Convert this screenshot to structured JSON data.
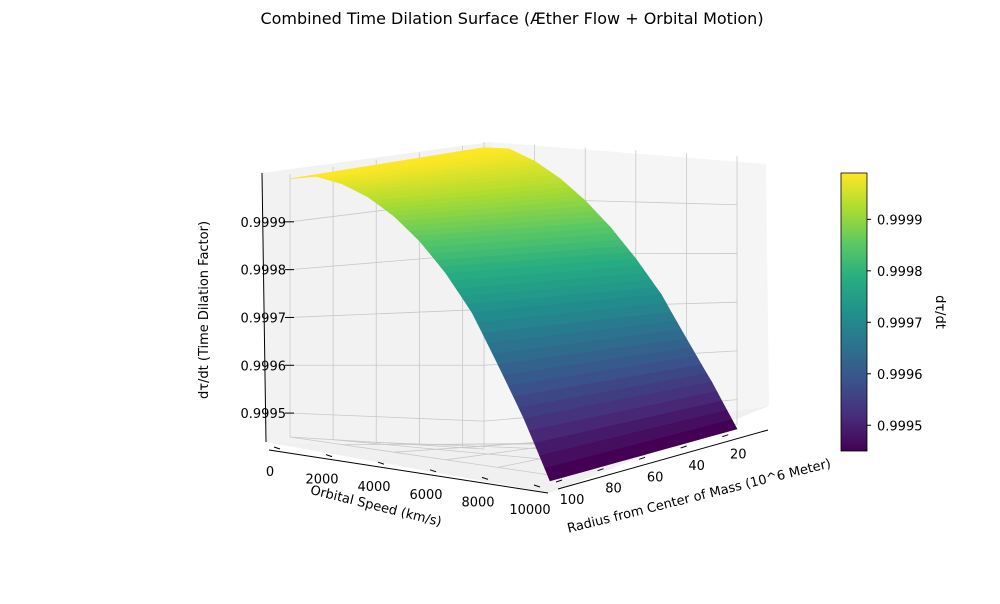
{
  "chart_data": {
    "type": "surface3d",
    "title": "Combined Time Dilation Surface (Æther Flow + Orbital Motion)",
    "xlabel": "Orbital Speed (km/s)",
    "ylabel": "Radius from Center of Mass (10^6 Meter)",
    "zlabel": "dτ/dt (Time Dilation Factor)",
    "xlim": [
      0,
      10000
    ],
    "ylim": [
      10,
      100
    ],
    "zlim": [
      0.99945,
      1.0
    ],
    "x_ticks": [
      "0",
      "2000",
      "4000",
      "6000",
      "8000",
      "10000"
    ],
    "y_ticks": [
      "100",
      "80",
      "60",
      "40",
      "20"
    ],
    "z_ticks": [
      "0.9995",
      "0.9996",
      "0.9997",
      "0.9998",
      "0.9999"
    ],
    "colorbar": {
      "label": "dτ/dt",
      "ticks": [
        "0.9995",
        "0.9996",
        "0.9997",
        "0.9998",
        "0.9999"
      ],
      "range": [
        0.99945,
        0.99999
      ],
      "colormap": "viridis"
    },
    "surface": {
      "speed": [
        0,
        1000,
        2000,
        3000,
        4000,
        5000,
        6000,
        7000,
        8000,
        9000,
        10000
      ],
      "dtau_dt_at_speed": [
        0.99999,
        0.99999,
        0.99997,
        0.99994,
        0.9999,
        0.99985,
        0.99979,
        0.99972,
        0.99963,
        0.99954,
        0.99944
      ],
      "radius_dependence": "negligible"
    },
    "grid": true
  }
}
